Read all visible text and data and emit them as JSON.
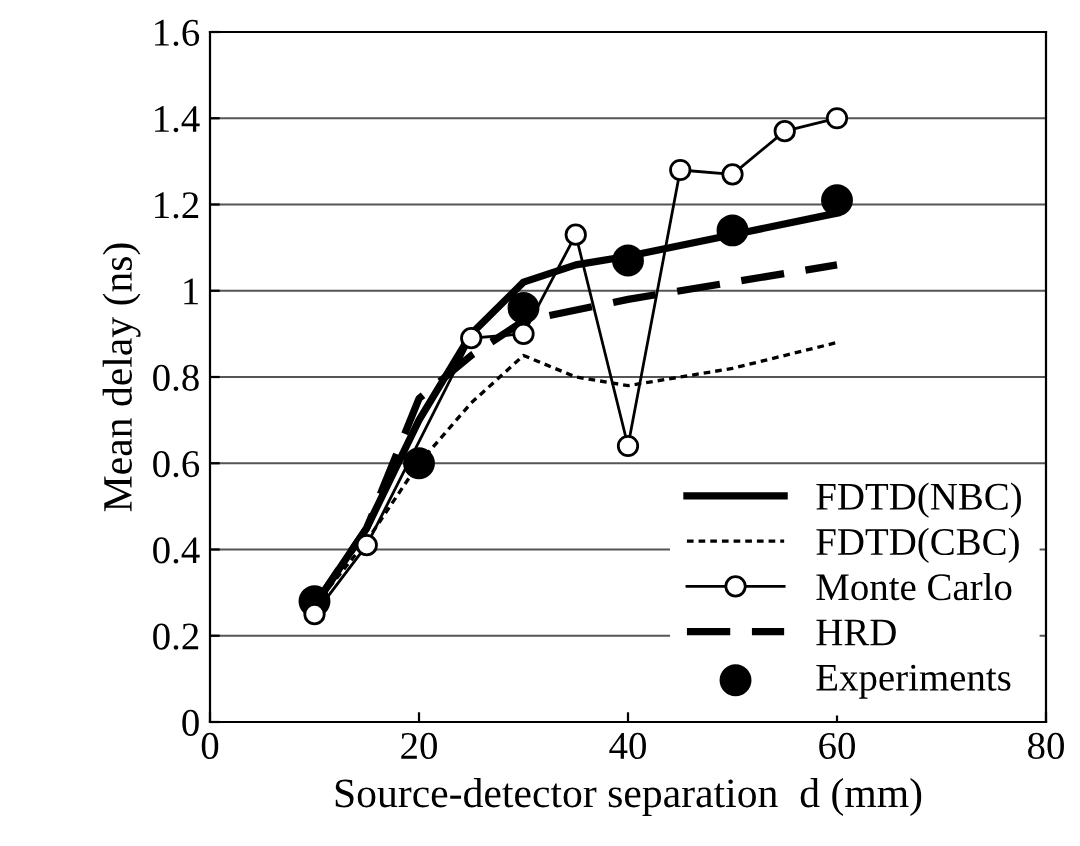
{
  "chart_data": {
    "type": "line",
    "xlabel": "Source-detector separation  d (mm)",
    "ylabel": "Mean delay (ns)",
    "xlim": [
      0,
      80
    ],
    "xticks": [
      0,
      20,
      40,
      60,
      80
    ],
    "ylim": [
      0,
      1.6
    ],
    "yticks": [
      0,
      0.2,
      0.4,
      0.6,
      0.8,
      1,
      1.2,
      1.4,
      1.6
    ],
    "grid": "y",
    "legend": "bottom right",
    "series": [
      {
        "name": "FDTD(NBC)",
        "color": "#000000",
        "line_style": "solid",
        "marker": "none",
        "x": [
          10,
          15,
          20,
          25,
          30,
          35,
          40,
          50,
          60
        ],
        "values": [
          0.27,
          0.45,
          0.7,
          0.9,
          1.02,
          1.06,
          1.08,
          1.13,
          1.18
        ]
      },
      {
        "name": "FDTD(CBC)",
        "color": "#000000",
        "line_style": "dotted",
        "marker": "none",
        "x": [
          10,
          15,
          20,
          25,
          30,
          35,
          40,
          50,
          60
        ],
        "values": [
          0.27,
          0.42,
          0.6,
          0.74,
          0.85,
          0.8,
          0.78,
          0.82,
          0.88
        ]
      },
      {
        "name": "Monte Carlo",
        "color": "#000000",
        "line_style": "solid",
        "marker": "circle",
        "x": [
          10,
          15,
          25,
          30,
          35,
          40,
          45,
          50,
          55,
          60
        ],
        "values": [
          0.25,
          0.41,
          0.89,
          0.9,
          1.13,
          0.64,
          1.28,
          1.27,
          1.37,
          1.4
        ]
      },
      {
        "name": "HRD",
        "color": "#000000",
        "line_style": "dashed",
        "marker": "none",
        "x": [
          10,
          15,
          20,
          25,
          30,
          40,
          50,
          60
        ],
        "values": [
          0.27,
          0.45,
          0.75,
          0.85,
          0.93,
          0.98,
          1.02,
          1.06
        ]
      },
      {
        "name": "Experiments",
        "type": "scatter",
        "color": "#000000",
        "marker": "circle",
        "x": [
          10,
          20,
          30,
          40,
          50,
          60
        ],
        "values": [
          0.28,
          0.6,
          0.96,
          1.07,
          1.14,
          1.21
        ]
      }
    ]
  }
}
